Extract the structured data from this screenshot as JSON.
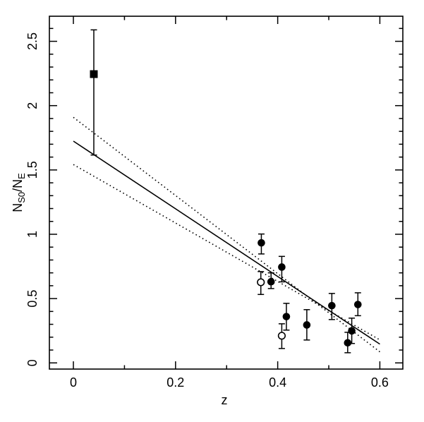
{
  "chart_data": {
    "type": "scatter",
    "title": "",
    "xlabel": "z",
    "ylabel": "N_S0/N_E",
    "ylabel_parts": [
      {
        "text": "N",
        "sub": false
      },
      {
        "text": "S0",
        "sub": true
      },
      {
        "text": "/N",
        "sub": false
      },
      {
        "text": "E",
        "sub": true
      }
    ],
    "xlim": [
      -0.047,
      0.645
    ],
    "ylim": [
      -0.048,
      2.695
    ],
    "x_major_ticks": [
      0,
      0.2,
      0.4,
      0.6
    ],
    "x_minor_ticks": [
      0.1,
      0.3,
      0.5
    ],
    "y_major_ticks": [
      0,
      0.5,
      1,
      1.5,
      2,
      2.5
    ],
    "y_minor_step": 0.1,
    "grid": false,
    "legend": "none",
    "colors": {
      "foreground": "#000000",
      "background": "#ffffff"
    },
    "series": [
      {
        "name": "local-cluster-point",
        "marker": "filled-square",
        "points": [
          {
            "z": 0.04,
            "y": 2.245,
            "ylo": 1.616,
            "yhi": 2.589
          }
        ]
      },
      {
        "name": "distant-clusters-filled",
        "marker": "filled-circle",
        "points": [
          {
            "z": 0.368,
            "y": 0.933,
            "ylo": 0.847,
            "yhi": 1.002
          },
          {
            "z": 0.387,
            "y": 0.631,
            "ylo": 0.578,
            "yhi": 0.7
          },
          {
            "z": 0.408,
            "y": 0.745,
            "ylo": 0.63,
            "yhi": 0.828
          },
          {
            "z": 0.417,
            "y": 0.36,
            "ylo": 0.255,
            "yhi": 0.463
          },
          {
            "z": 0.457,
            "y": 0.295,
            "ylo": 0.178,
            "yhi": 0.414
          },
          {
            "z": 0.506,
            "y": 0.445,
            "ylo": 0.337,
            "yhi": 0.54
          },
          {
            "z": 0.537,
            "y": 0.156,
            "ylo": 0.079,
            "yhi": 0.238
          },
          {
            "z": 0.545,
            "y": 0.249,
            "ylo": 0.151,
            "yhi": 0.348
          },
          {
            "z": 0.557,
            "y": 0.454,
            "ylo": 0.367,
            "yhi": 0.545
          }
        ]
      },
      {
        "name": "distant-clusters-open",
        "marker": "open-circle",
        "points": [
          {
            "z": 0.367,
            "y": 0.627,
            "ylo": 0.532,
            "yhi": 0.71
          },
          {
            "z": 0.408,
            "y": 0.211,
            "ylo": 0.112,
            "yhi": 0.304
          }
        ]
      }
    ],
    "lines": [
      {
        "name": "best-fit-line",
        "style": "solid",
        "x": [
          0.0,
          0.6
        ],
        "y": [
          1.724,
          0.146
        ]
      },
      {
        "name": "upper-intercept-uncertainty-line",
        "style": "dotted",
        "x": [
          0.0,
          0.6
        ],
        "y": [
          1.909,
          0.086
        ]
      },
      {
        "name": "lower-intercept-uncertainty-line",
        "style": "dotted",
        "x": [
          0.0,
          0.6
        ],
        "y": [
          1.542,
          0.179
        ]
      }
    ]
  }
}
